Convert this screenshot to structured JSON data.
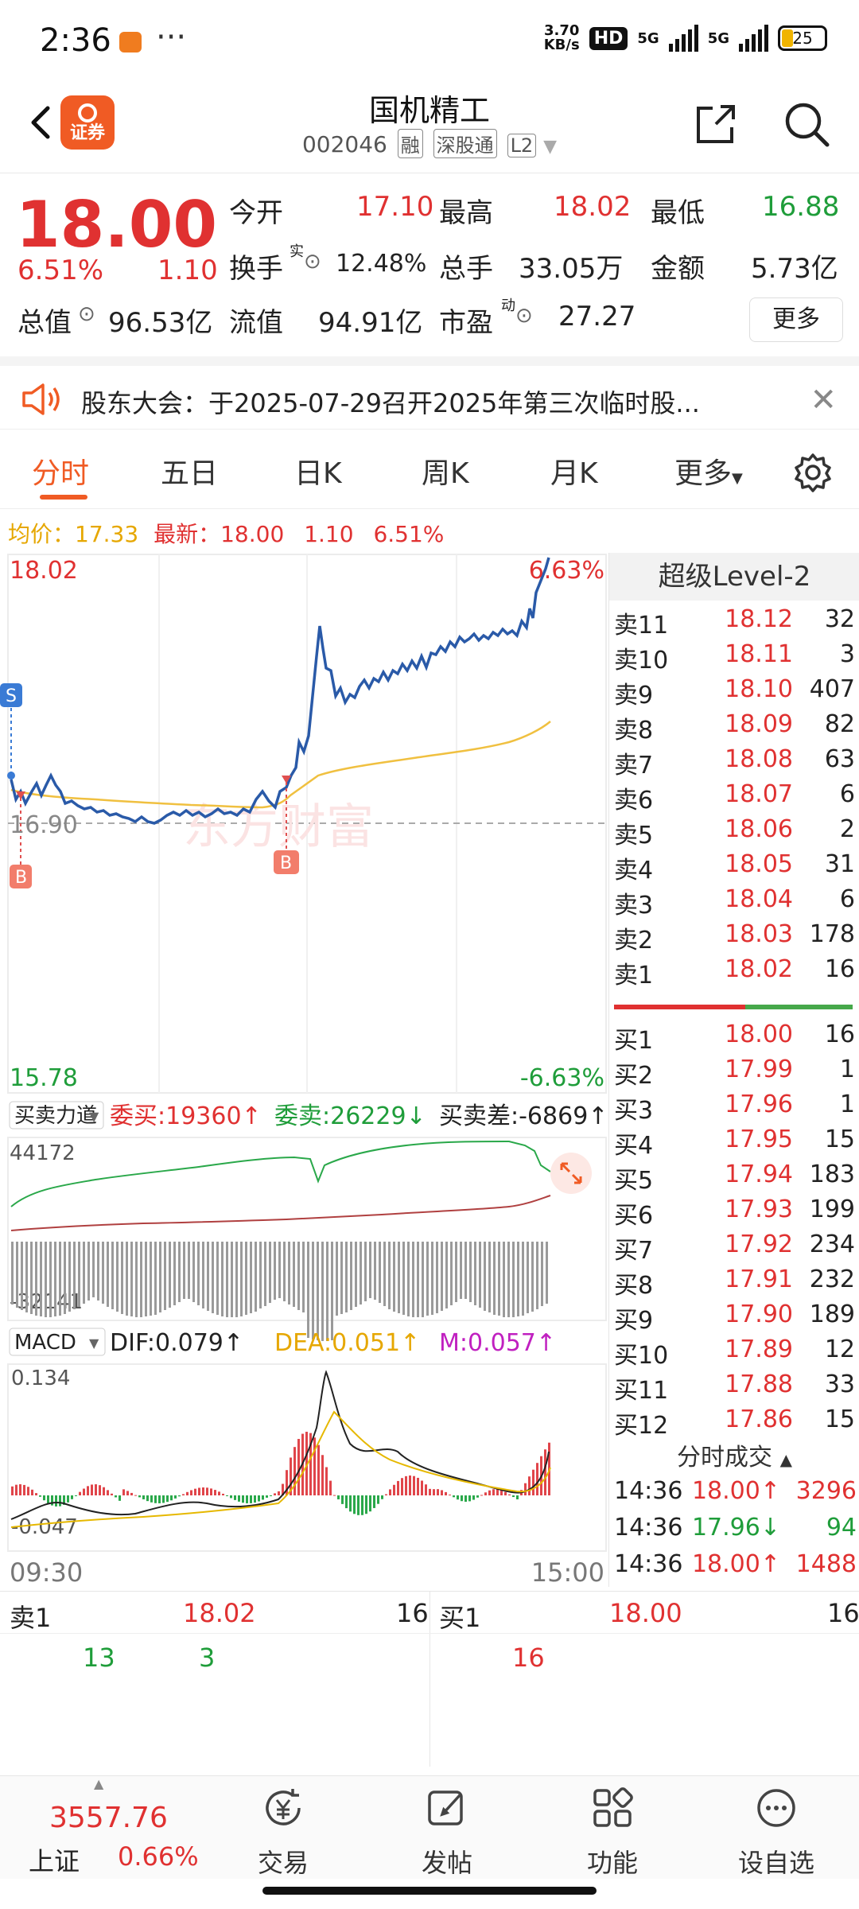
{
  "status_bar": {
    "time": "2:36",
    "dots": "···",
    "net_speed_value": "3.70",
    "net_speed_unit": "KB/s",
    "hd": "HD",
    "net1": "5G",
    "net2": "5G",
    "battery": "25"
  },
  "header": {
    "logo_text": "证券",
    "stock_name": "国机精工",
    "stock_code": "002046",
    "tags": [
      "融",
      "深股通",
      "L2"
    ]
  },
  "quote": {
    "price": "18.00",
    "change_pct": "6.51%",
    "change": "1.10",
    "open_label": "今开",
    "open": "17.10",
    "high_label": "最高",
    "high": "18.02",
    "low_label": "最低",
    "low": "16.88",
    "turnover_label": "换手",
    "turnover_sup": "实",
    "turnover": "12.48%",
    "volume_label": "总手",
    "volume": "33.05万",
    "amount_label": "金额",
    "amount": "5.73亿",
    "mktcap_label": "总值",
    "mktcap": "96.53亿",
    "float_label": "流值",
    "float_cap": "94.91亿",
    "pe_label": "市盈",
    "pe_sup": "动",
    "pe": "27.27",
    "more": "更多"
  },
  "notice": {
    "text": "股东大会：于2025-07-29召开2025年第三次临时股..."
  },
  "tabs": [
    "分时",
    "五日",
    "日K",
    "周K",
    "月K",
    "更多"
  ],
  "avg_line": {
    "avg_label": "均价：",
    "avg": "17.33",
    "latest_label": "最新：",
    "latest": "18.00",
    "change": "1.10",
    "pct": "6.51%"
  },
  "chart": {
    "y_top": "18.02",
    "y_top_pct": "6.63%",
    "y_mid": "16.90",
    "y_bottom": "15.78",
    "y_bottom_pct": "-6.63%",
    "s_marker": "S",
    "b_marker": "B",
    "watermark": "东方财富",
    "force": {
      "label": "买卖力道",
      "buy_label": "委买:",
      "buy": "19360↑",
      "sell_label": "委卖:",
      "sell": "26229↓",
      "diff_label": "买卖差:",
      "diff": "-6869↑",
      "max": "44172",
      "min": "-32141"
    },
    "macd": {
      "label": "MACD",
      "dif_label": "DIF:",
      "dif": "0.079↑",
      "dea_label": "DEA:",
      "dea": "0.051↑",
      "m_label": "M:",
      "m": "0.057↑",
      "max": "0.134",
      "min": "-0.047"
    },
    "time_start": "09:30",
    "time_end": "15:00"
  },
  "level2": {
    "title": "超级Level-2",
    "asks": [
      {
        "label": "卖11",
        "price": "18.12",
        "vol": "32"
      },
      {
        "label": "卖10",
        "price": "18.11",
        "vol": "3"
      },
      {
        "label": "卖9",
        "price": "18.10",
        "vol": "407"
      },
      {
        "label": "卖8",
        "price": "18.09",
        "vol": "82"
      },
      {
        "label": "卖7",
        "price": "18.08",
        "vol": "63"
      },
      {
        "label": "卖6",
        "price": "18.07",
        "vol": "6"
      },
      {
        "label": "卖5",
        "price": "18.06",
        "vol": "2"
      },
      {
        "label": "卖4",
        "price": "18.05",
        "vol": "31"
      },
      {
        "label": "卖3",
        "price": "18.04",
        "vol": "6"
      },
      {
        "label": "卖2",
        "price": "18.03",
        "vol": "178"
      },
      {
        "label": "卖1",
        "price": "18.02",
        "vol": "16"
      }
    ],
    "bids": [
      {
        "label": "买1",
        "price": "18.00",
        "vol": "16"
      },
      {
        "label": "买2",
        "price": "17.99",
        "vol": "1"
      },
      {
        "label": "买3",
        "price": "17.96",
        "vol": "1"
      },
      {
        "label": "买4",
        "price": "17.95",
        "vol": "15"
      },
      {
        "label": "买5",
        "price": "17.94",
        "vol": "183"
      },
      {
        "label": "买6",
        "price": "17.93",
        "vol": "199"
      },
      {
        "label": "买7",
        "price": "17.92",
        "vol": "234"
      },
      {
        "label": "买8",
        "price": "17.91",
        "vol": "232"
      },
      {
        "label": "买9",
        "price": "17.90",
        "vol": "189"
      },
      {
        "label": "买10",
        "price": "17.89",
        "vol": "12"
      },
      {
        "label": "买11",
        "price": "17.88",
        "vol": "33"
      },
      {
        "label": "买12",
        "price": "17.86",
        "vol": "15"
      }
    ],
    "trades_title": "分时成交",
    "trades": [
      {
        "time": "14:36",
        "price": "18.00",
        "dir": "↑",
        "vol": "3296",
        "color": "#e03131"
      },
      {
        "time": "14:36",
        "price": "17.96",
        "dir": "↓",
        "vol": "94",
        "color": "#1f9d3a"
      },
      {
        "time": "14:36",
        "price": "18.00",
        "dir": "↑",
        "vol": "1488",
        "color": "#e03131"
      }
    ]
  },
  "bottom_book": {
    "sell_label": "卖1",
    "sell_price": "18.02",
    "sell_vol": "16",
    "buy_label": "买1",
    "buy_price": "18.00",
    "buy_vol": "16",
    "sell_queue": [
      "13",
      "3"
    ],
    "buy_queue": [
      "16"
    ]
  },
  "nav": {
    "index_value": "3557.76",
    "index_name": "上证",
    "index_pct": "0.66%",
    "items": [
      "交易",
      "发帖",
      "功能",
      "设自选"
    ]
  },
  "colors": {
    "up": "#e03131",
    "down": "#1f9d3a",
    "accent": "#f05b24",
    "price_line": "#2a5aa8",
    "avg_line": "#f0c040"
  }
}
